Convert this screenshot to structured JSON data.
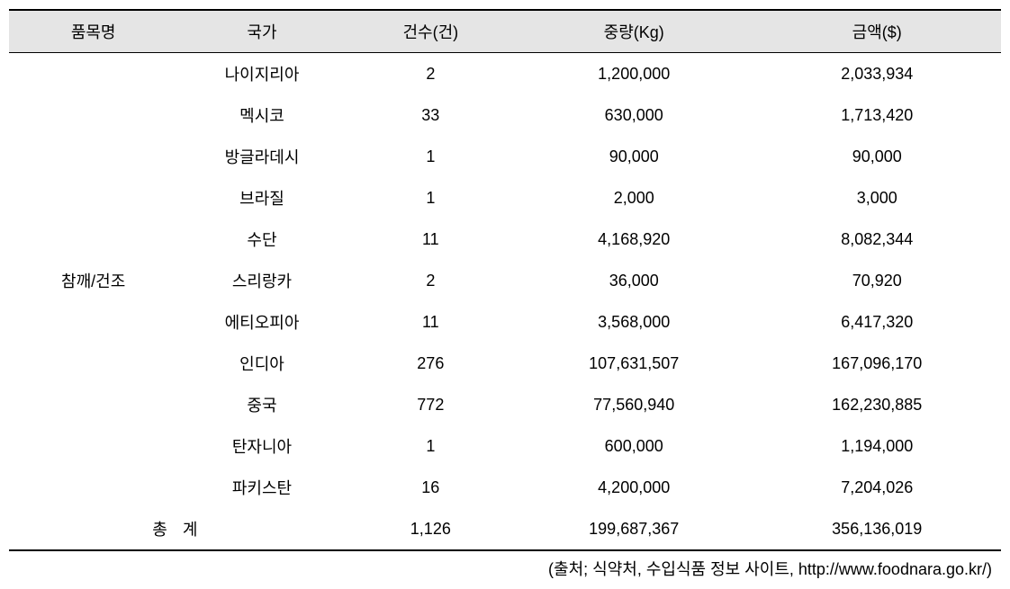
{
  "headers": {
    "item": "품목명",
    "country": "국가",
    "count": "건수(건)",
    "weight": "중량(Kg)",
    "amount": "금액($)"
  },
  "item_name": "참깨/건조",
  "rows": [
    {
      "country": "나이지리아",
      "count": "2",
      "weight": "1,200,000",
      "amount": "2,033,934"
    },
    {
      "country": "멕시코",
      "count": "33",
      "weight": "630,000",
      "amount": "1,713,420"
    },
    {
      "country": "방글라데시",
      "count": "1",
      "weight": "90,000",
      "amount": "90,000"
    },
    {
      "country": "브라질",
      "count": "1",
      "weight": "2,000",
      "amount": "3,000"
    },
    {
      "country": "수단",
      "count": "11",
      "weight": "4,168,920",
      "amount": "8,082,344"
    },
    {
      "country": "스리랑카",
      "count": "2",
      "weight": "36,000",
      "amount": "70,920"
    },
    {
      "country": "에티오피아",
      "count": "11",
      "weight": "3,568,000",
      "amount": "6,417,320"
    },
    {
      "country": "인디아",
      "count": "276",
      "weight": "107,631,507",
      "amount": "167,096,170"
    },
    {
      "country": "중국",
      "count": "772",
      "weight": "77,560,940",
      "amount": "162,230,885"
    },
    {
      "country": "탄자니아",
      "count": "1",
      "weight": "600,000",
      "amount": "1,194,000"
    },
    {
      "country": "파키스탄",
      "count": "16",
      "weight": "4,200,000",
      "amount": "7,204,026"
    }
  ],
  "total": {
    "label": "총   계",
    "count": "1,126",
    "weight": "199,687,367",
    "amount": "356,136,019"
  },
  "source": "(출처; 식약처, 수입식품 정보 사이트, http://www.foodnara.go.kr/)",
  "item_label_row_index": 5
}
